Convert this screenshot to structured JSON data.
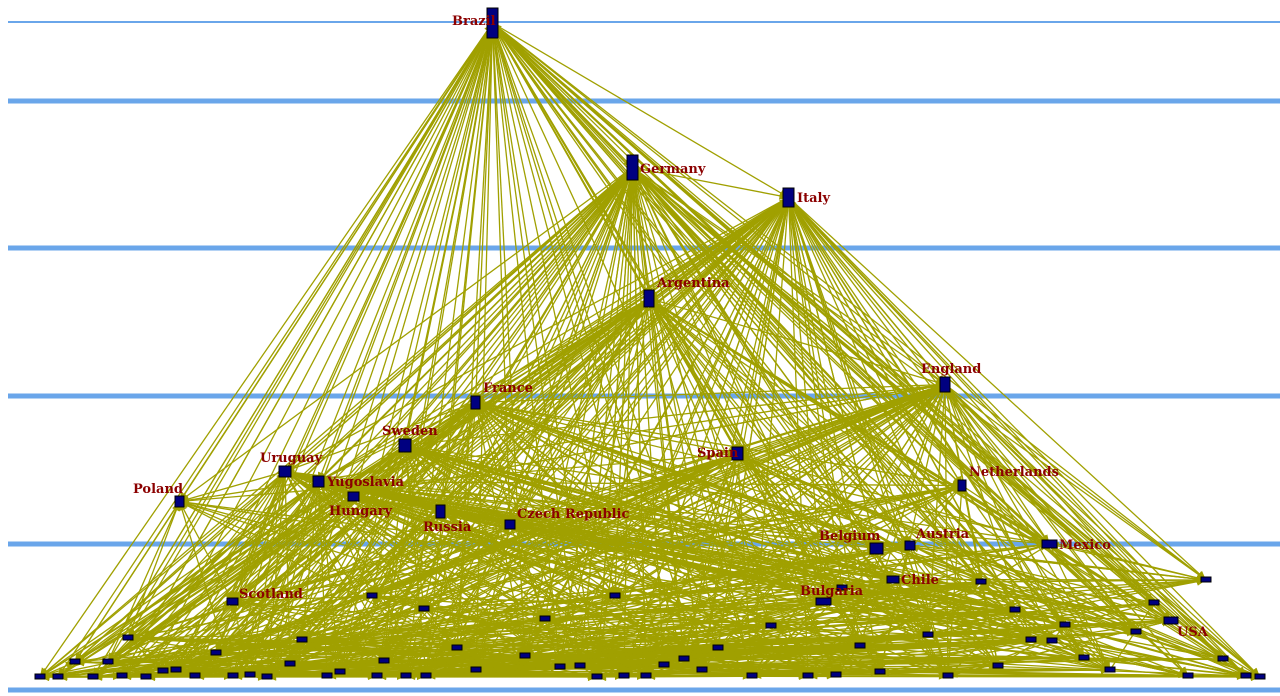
{
  "colors": {
    "background": "#ffffff",
    "level_line": "#6aa6ea",
    "edge": "#a0a000",
    "node_fill": "#000080",
    "node_stroke": "#000000",
    "label": "#8b0000"
  },
  "nodes": [
    {
      "id": "brazil",
      "label": "Brazil"
    },
    {
      "id": "germany",
      "label": "Germany"
    },
    {
      "id": "italy",
      "label": "Italy"
    },
    {
      "id": "argentina",
      "label": "Argentina"
    },
    {
      "id": "england",
      "label": "England"
    },
    {
      "id": "france",
      "label": "France"
    },
    {
      "id": "sweden",
      "label": "Sweden"
    },
    {
      "id": "spain",
      "label": "Spain"
    },
    {
      "id": "uruguay",
      "label": "Uruguay"
    },
    {
      "id": "yugoslavia",
      "label": "Yugoslavia"
    },
    {
      "id": "netherlands",
      "label": "Netherlands"
    },
    {
      "id": "poland",
      "label": "Poland"
    },
    {
      "id": "hungary",
      "label": "Hungary"
    },
    {
      "id": "czech-republic",
      "label": "Czech Republic"
    },
    {
      "id": "russia",
      "label": "Russia"
    },
    {
      "id": "belgium",
      "label": "Belgium"
    },
    {
      "id": "austria",
      "label": "Austria"
    },
    {
      "id": "mexico",
      "label": "Mexico"
    },
    {
      "id": "chile",
      "label": "Chile"
    },
    {
      "id": "scotland",
      "label": "Scotland"
    },
    {
      "id": "bulgaria",
      "label": "Bulgaria"
    },
    {
      "id": "usa",
      "label": "USA"
    }
  ]
}
